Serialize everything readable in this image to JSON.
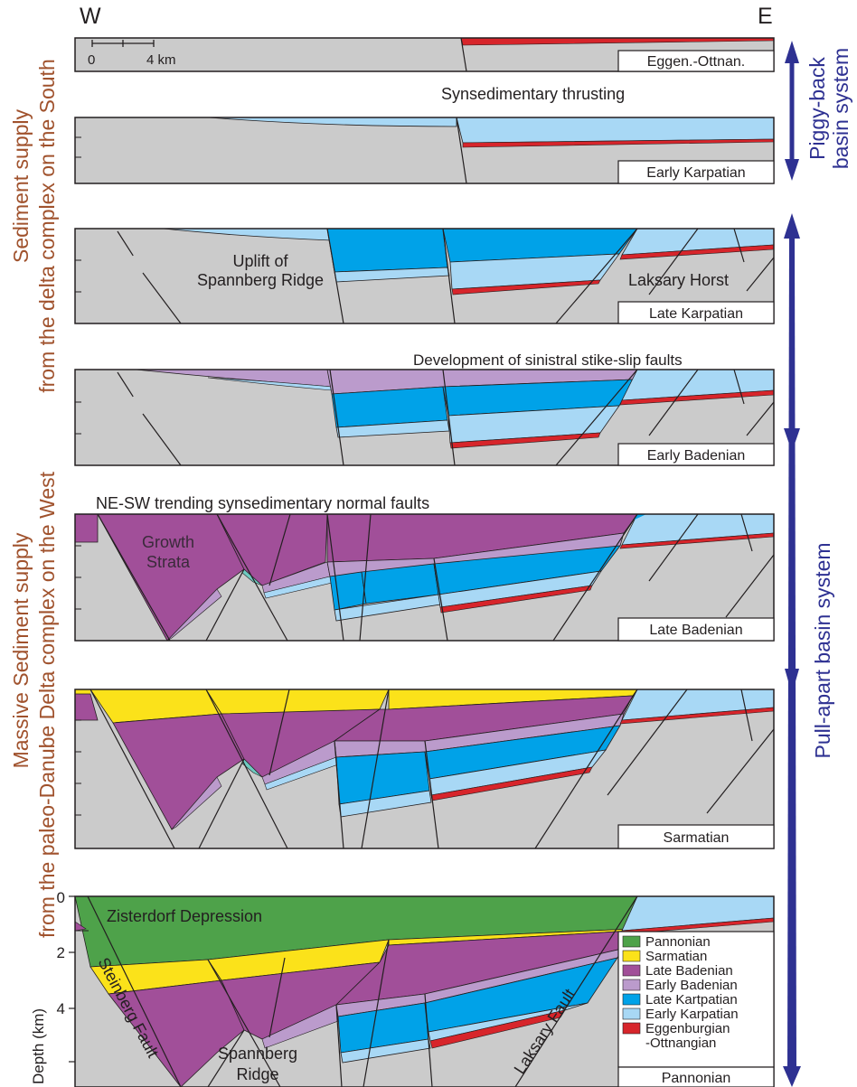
{
  "compass": {
    "west": "W",
    "east": "E"
  },
  "scale_bar": {
    "start": "0",
    "end": "4 km"
  },
  "left_labels": {
    "south_line1": "Sediment supply",
    "south_line2": "from the delta complex on the South",
    "west_line1": "Massive Sediment supply",
    "west_line2": "from the paleo-Danube Delta complex on the West"
  },
  "right_labels": {
    "piggyback_line1": "Piggy-back",
    "piggyback_line2": "basin system",
    "pullapart": "Pull-apart basin system"
  },
  "panels": [
    {
      "stage": "Eggen.-Ottnan."
    },
    {
      "stage": "Early Karpatian"
    },
    {
      "stage": "Late Karpatian"
    },
    {
      "stage": "Early Badenian"
    },
    {
      "stage": "Late Badenian"
    },
    {
      "stage": "Sarmatian"
    },
    {
      "stage": "Pannonian"
    }
  ],
  "annotations": {
    "synsedimentary_thrusting": "Synsedimentary thrusting",
    "uplift_line1": "Uplift of",
    "uplift_line2": "Spannberg Ridge",
    "laksary_horst": "Laksary Horst",
    "strike_slip": "Development of sinistral stike-slip faults",
    "normal_faults": "NE-SW trending synsedimentary normal faults",
    "growth_line1": "Growth",
    "growth_line2": "Strata",
    "zisterdorf": "Zisterdorf Depression",
    "steinberg": "Steinberg Fault",
    "spannberg_line1": "Spannberg",
    "spannberg_line2": "Ridge",
    "laksary_fault": "Laksary Fault"
  },
  "depth_axis": {
    "label": "Depth (km)",
    "ticks": [
      "0",
      "2",
      "4"
    ]
  },
  "legend": [
    {
      "label": "Pannonian",
      "color": "#4ea24a"
    },
    {
      "label": "Sarmatian",
      "color": "#fbe21a"
    },
    {
      "label": "Late Badenian",
      "color": "#a14f99"
    },
    {
      "label": "Early Badenian",
      "color": "#bb9bcc"
    },
    {
      "label": "Late Kartpatian",
      "color": "#00a2e8"
    },
    {
      "label": "Early Karpatian",
      "color": "#a8d8f5"
    },
    {
      "label": "Eggenburgian",
      "color": "#d7252b"
    },
    {
      "label": "-Ottnangian",
      "color": ""
    }
  ],
  "colors": {
    "basement": "#cbcbcb",
    "pannonian": "#4ea24a",
    "sarmatian": "#fbe21a",
    "late_badenian": "#a14f99",
    "early_badenian": "#bb9bcc",
    "late_karpatian": "#00a2e8",
    "early_karpatian": "#a8d8f5",
    "eggenburgian": "#d7252b",
    "brown_text": "#a0522d",
    "navy_arrow": "#2e3192"
  }
}
